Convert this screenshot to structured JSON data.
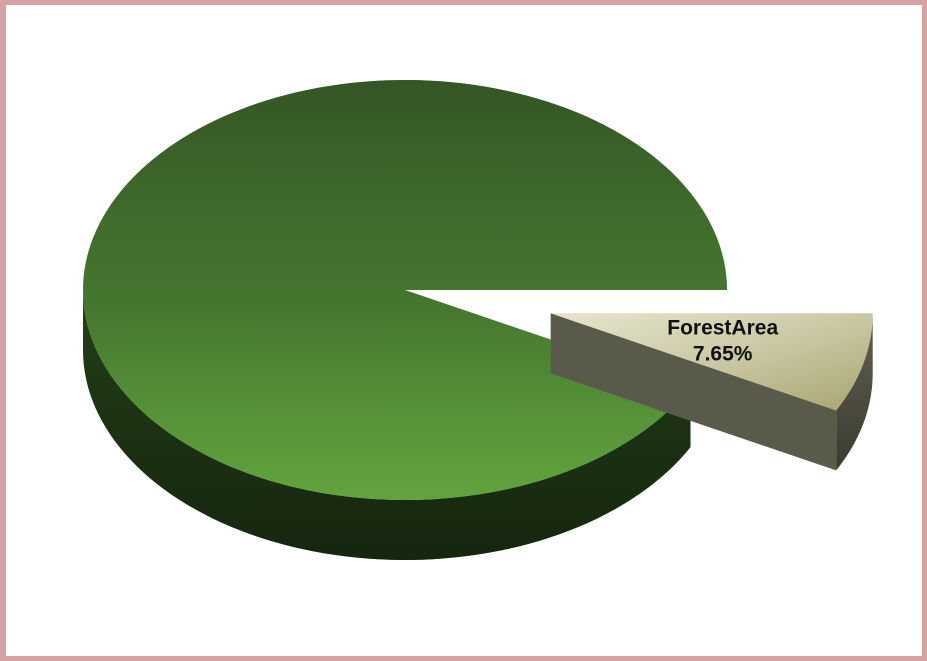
{
  "chart_data": {
    "type": "pie3d",
    "categories": [
      null,
      "ForestArea"
    ],
    "values": [
      92.35,
      7.65
    ],
    "value_labels": [
      null,
      "7.65%"
    ],
    "colors": [
      "#4f8c35",
      "#d9d7b2"
    ],
    "exploded": [
      false,
      true
    ]
  }
}
